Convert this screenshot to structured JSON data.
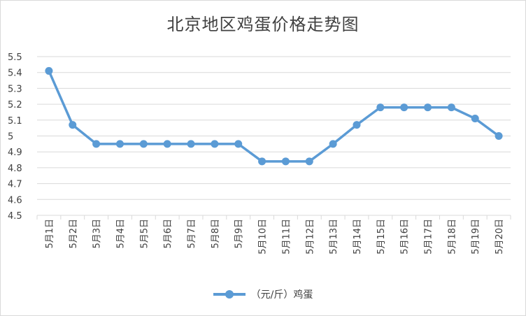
{
  "chart_data": {
    "type": "line",
    "title": "北京地区鸡蛋价格走势图",
    "categories": [
      "5月1日",
      "5月2日",
      "5月3日",
      "5月4日",
      "5月5日",
      "5月6日",
      "5月7日",
      "5月8日",
      "5月9日",
      "5月10日",
      "5月11日",
      "5月12日",
      "5月13日",
      "5月14日",
      "5月15日",
      "5月16日",
      "5月17日",
      "5月18日",
      "5月19日",
      "5月20日"
    ],
    "series": [
      {
        "name": "（元/斤）鸡蛋",
        "values": [
          5.41,
          5.07,
          4.95,
          4.95,
          4.95,
          4.95,
          4.95,
          4.95,
          4.95,
          4.84,
          4.84,
          4.84,
          4.95,
          5.07,
          5.18,
          5.18,
          5.18,
          5.18,
          5.11,
          5.0
        ]
      }
    ],
    "ylim": [
      4.5,
      5.5
    ],
    "yticks": [
      "4.5",
      "4.6",
      "4.7",
      "4.8",
      "4.9",
      "5",
      "5.1",
      "5.2",
      "5.3",
      "5.4",
      "5.5"
    ],
    "grid": true,
    "legend_position": "bottom",
    "color": "#5b9bd5"
  }
}
